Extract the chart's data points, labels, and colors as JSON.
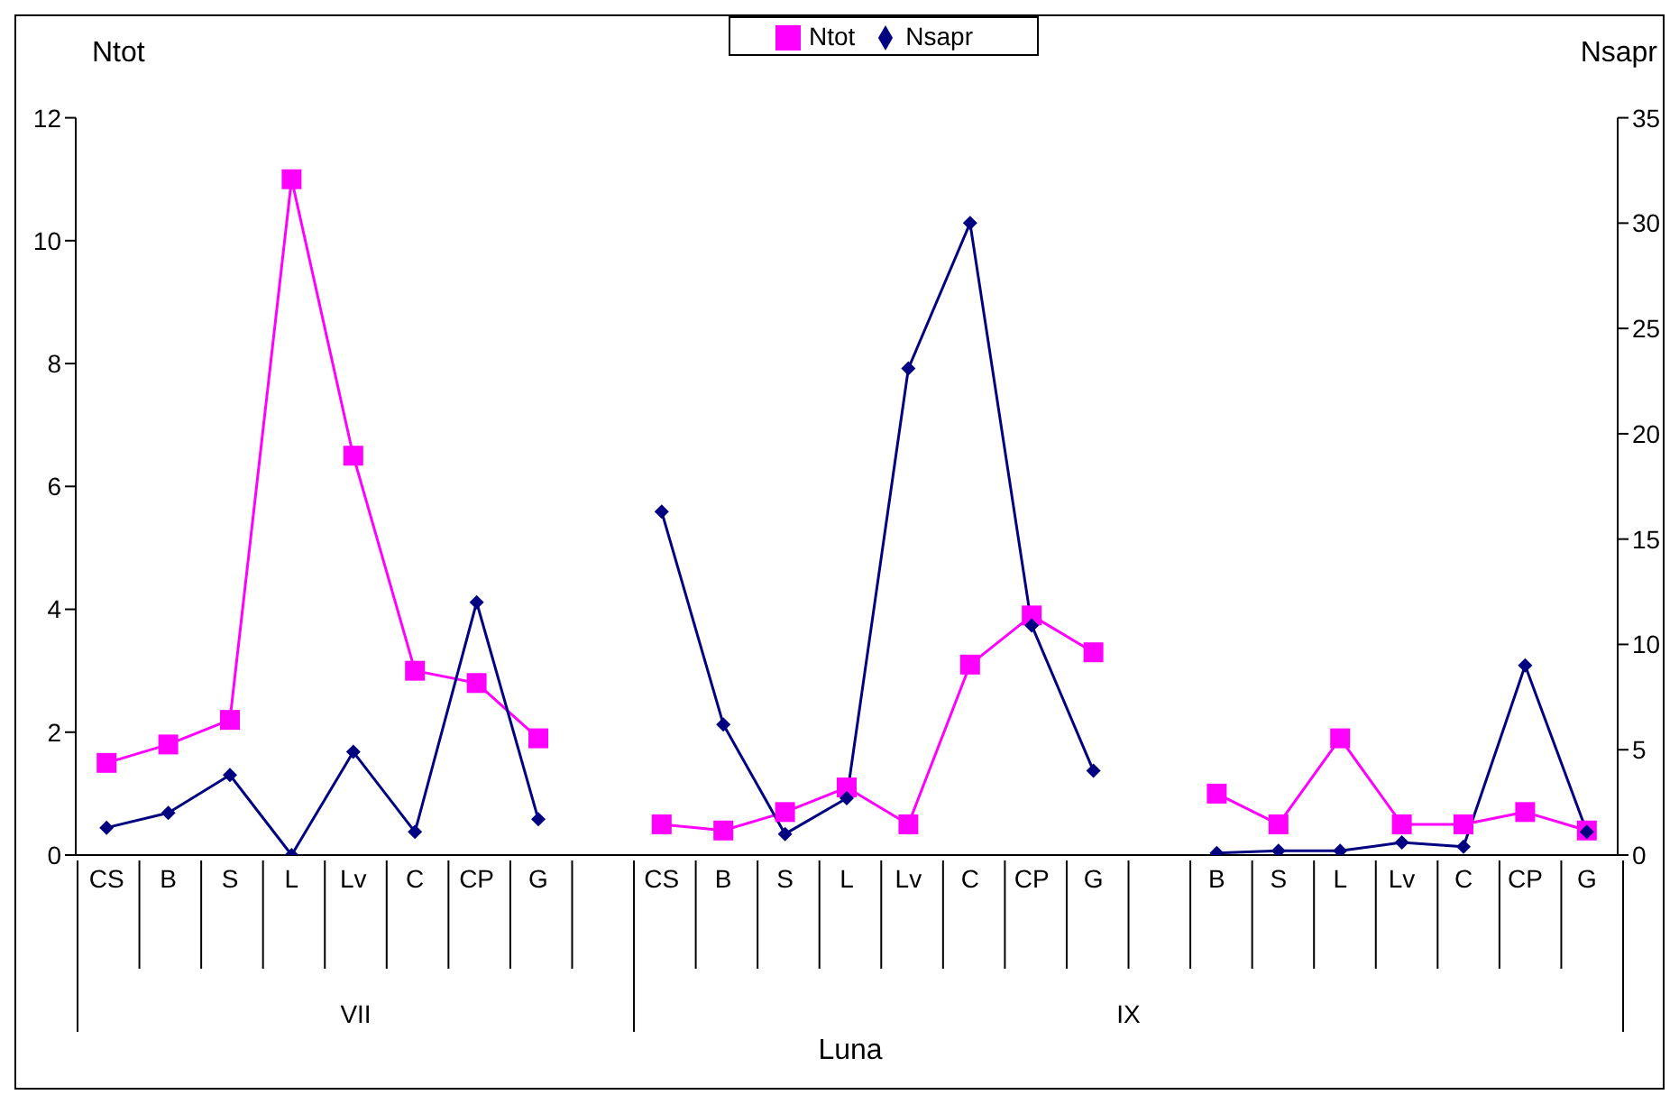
{
  "chart_data": {
    "type": "line",
    "xlabel": "Luna",
    "ylabel": "Ntot",
    "y2label": "Nsapr",
    "categories": [
      "CS",
      "B",
      "S",
      "L",
      "Lv",
      "C",
      "CP",
      "G",
      null,
      "CS",
      "B",
      "S",
      "L",
      "Lv",
      "C",
      "CP",
      "G",
      null,
      "B",
      "S",
      "L",
      "Lv",
      "C",
      "CP",
      "G"
    ],
    "series": [
      {
        "name": "Ntot",
        "color": "#ff00ff",
        "marker": "square",
        "values": [
          1.5,
          1.8,
          2.2,
          11,
          6.5,
          3.0,
          2.8,
          1.9,
          null,
          0.5,
          0.4,
          0.7,
          1.1,
          0.5,
          3.1,
          3.9,
          3.3,
          null,
          1.0,
          0.5,
          1.9,
          0.5,
          0.5,
          0.7,
          0.4
        ]
      },
      {
        "name": "Nsapr",
        "color": "#000080",
        "marker": "diamond",
        "axis": "y2",
        "values": [
          1.3,
          2.0,
          3.8,
          0,
          4.9,
          1.1,
          12.0,
          1.7,
          null,
          16.3,
          6.2,
          1.0,
          2.7,
          23.1,
          30.0,
          10.9,
          4.0,
          null,
          0.1,
          0.2,
          0.2,
          0.6,
          0.4,
          9.0,
          1.1
        ]
      }
    ],
    "ylim": [
      0,
      12
    ],
    "yticks": [
      0,
      2,
      4,
      6,
      8,
      10,
      12
    ],
    "y2lim": [
      0,
      35
    ],
    "y2ticks": [
      0,
      5,
      10,
      15,
      20,
      25,
      30,
      35
    ],
    "annotations": [
      "VII",
      "IX"
    ],
    "legend": "top",
    "grid": false
  }
}
